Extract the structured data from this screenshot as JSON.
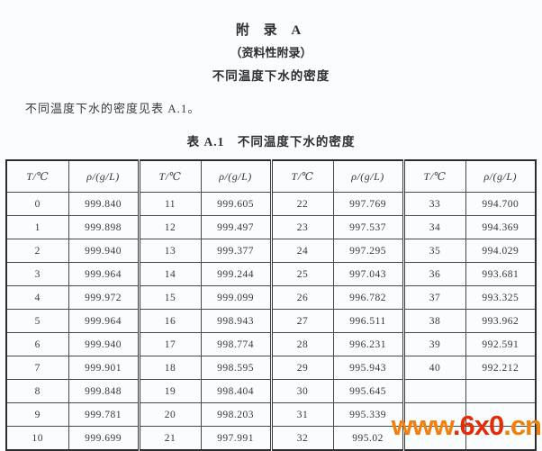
{
  "page": {
    "appendix_title": "附 录 A",
    "appendix_subtitle": "（资料性附录）",
    "appendix_heading": "不同温度下水的密度",
    "intro_text": "不同温度下水的密度见表 A.1。",
    "table_caption": "表 A.1　不同温度下水的密度"
  },
  "table": {
    "header": [
      "T/℃",
      "ρ/(g/L)",
      "T/℃",
      "ρ/(g/L)",
      "T/℃",
      "ρ/(g/L)",
      "T/℃",
      "ρ/(g/L)"
    ],
    "rows": [
      [
        "0",
        "999.840",
        "11",
        "999.605",
        "22",
        "997.769",
        "33",
        "994.700"
      ],
      [
        "1",
        "999.898",
        "12",
        "999.497",
        "23",
        "997.537",
        "34",
        "994.369"
      ],
      [
        "2",
        "999.940",
        "13",
        "999.377",
        "24",
        "997.295",
        "35",
        "994.029"
      ],
      [
        "3",
        "999.964",
        "14",
        "999.244",
        "25",
        "997.043",
        "36",
        "993.681"
      ],
      [
        "4",
        "999.972",
        "15",
        "999.099",
        "26",
        "996.782",
        "37",
        "993.325"
      ],
      [
        "5",
        "999.964",
        "16",
        "998.943",
        "27",
        "996.511",
        "38",
        "993.962"
      ],
      [
        "6",
        "999.940",
        "17",
        "998.774",
        "28",
        "996.231",
        "39",
        "992.591"
      ],
      [
        "7",
        "999.901",
        "18",
        "998.595",
        "29",
        "995.943",
        "40",
        "992.212"
      ],
      [
        "8",
        "999.848",
        "19",
        "998.404",
        "30",
        "995.645",
        "",
        ""
      ],
      [
        "9",
        "999.781",
        "20",
        "998.203",
        "31",
        "995.339",
        "",
        ""
      ],
      [
        "10",
        "999.699",
        "21",
        "997.991",
        "32",
        "995.02",
        "",
        ""
      ]
    ]
  },
  "watermark": {
    "segments": [
      {
        "text": "www",
        "color": "#f1800f"
      },
      {
        "text": ".6x0",
        "color": "#e52c09"
      },
      {
        "text": ".cn",
        "color": "#f1800f"
      }
    ]
  },
  "colors": {
    "page_background": "#fafdfd",
    "table_border": "#3c3c3e",
    "text": "#333336"
  }
}
